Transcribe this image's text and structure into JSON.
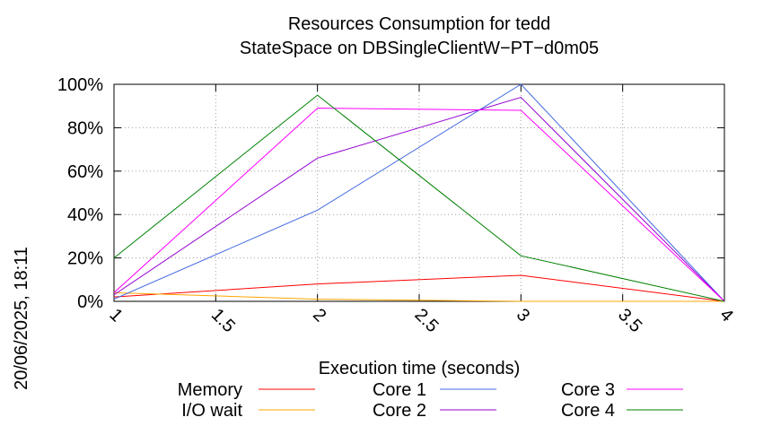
{
  "chart_data": {
    "type": "line",
    "title": [
      "Resources Consumption for tedd",
      "StateSpace on DBSingleClientW−PT−d0m05"
    ],
    "xlabel": "Execution time (seconds)",
    "ylabel": "",
    "side_label": "20/06/2025, 18:11",
    "x": [
      1,
      2,
      3,
      4
    ],
    "xlim": [
      1,
      4
    ],
    "ylim": [
      0,
      100
    ],
    "x_ticks": [
      1,
      1.5,
      2,
      2.5,
      3,
      3.5,
      4
    ],
    "x_tick_labels": [
      "1",
      "1.5",
      "2",
      "2.5",
      "3",
      "3.5",
      "4"
    ],
    "y_ticks": [
      0,
      20,
      40,
      60,
      80,
      100
    ],
    "y_tick_labels": [
      "0%",
      "20%",
      "40%",
      "60%",
      "80%",
      "100%"
    ],
    "grid": true,
    "legend_position": "bottom",
    "series": [
      {
        "name": "Memory",
        "color": "#ff0000",
        "values": [
          2,
          8,
          12,
          0
        ]
      },
      {
        "name": "I/O wait",
        "color": "#ffa500",
        "values": [
          4,
          1,
          0,
          0
        ]
      },
      {
        "name": "Core 1",
        "color": "#4169e1",
        "values": [
          1,
          42,
          100,
          0
        ]
      },
      {
        "name": "Core 2",
        "color": "#9400d3",
        "values": [
          3,
          66,
          94,
          0
        ]
      },
      {
        "name": "Core 3",
        "color": "#ff00ff",
        "values": [
          4,
          89,
          88,
          0
        ]
      },
      {
        "name": "Core 4",
        "color": "#008000",
        "values": [
          20,
          95,
          21,
          0
        ]
      }
    ]
  }
}
